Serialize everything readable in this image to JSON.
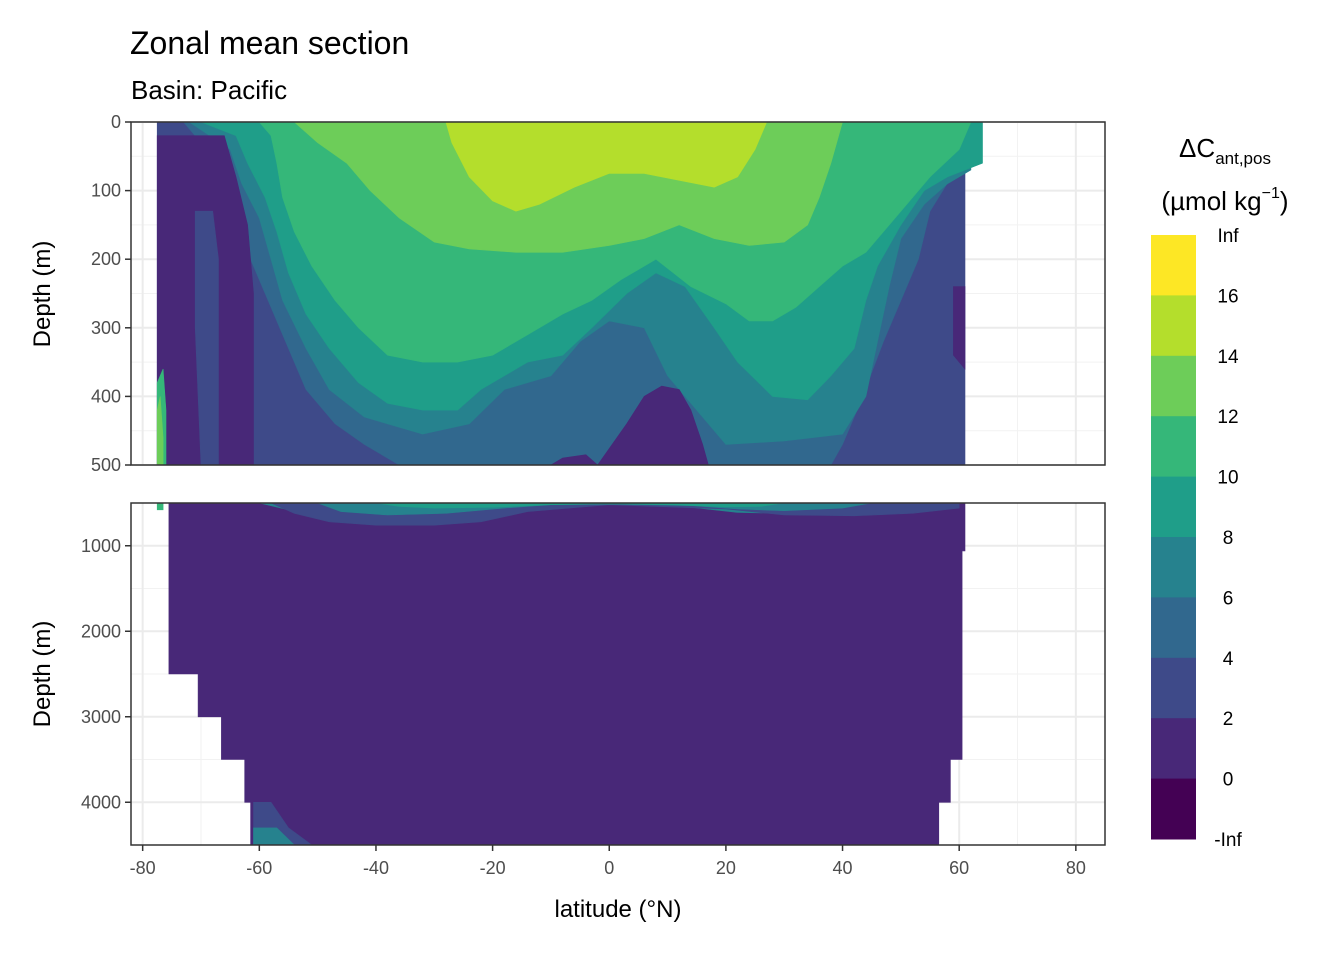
{
  "chart_data": {
    "type": "heatmap",
    "subtype": "filled contour section (two stacked panels)",
    "title": "Zonal mean section",
    "subtitle": "Basin: Pacific",
    "xlabel": "latitude (°N)",
    "ylabel": "Depth (m)",
    "xlim": [
      -82,
      85
    ],
    "x_ticks": [
      -80,
      -60,
      -40,
      -20,
      0,
      20,
      40,
      60,
      80
    ],
    "x_tick_labels": [
      "-80",
      "-60",
      "-40",
      "-20",
      "0",
      "20",
      "40",
      "60",
      "80"
    ],
    "grid": true,
    "panels": [
      {
        "id": "upper",
        "ylim": [
          0,
          500
        ],
        "y_reversed": true,
        "y_ticks": [
          0,
          100,
          200,
          300,
          400,
          500
        ],
        "y_tick_labels": [
          "0",
          "100",
          "200",
          "300",
          "400",
          "500"
        ]
      },
      {
        "id": "lower",
        "ylim": [
          500,
          4500
        ],
        "y_reversed": true,
        "y_ticks": [
          1000,
          2000,
          3000,
          4000
        ],
        "y_tick_labels": [
          "1000",
          "2000",
          "3000",
          "4000"
        ]
      }
    ],
    "legend": {
      "title": "ΔC",
      "title_subscript": "ant,pos",
      "unit_prefix": "(µmol kg",
      "unit_superscript": "−1",
      "unit_suffix": ")",
      "placement": "right",
      "breaks": [
        "Inf",
        "16",
        "14",
        "12",
        "10",
        "8",
        "6",
        "4",
        "2",
        "0",
        "-Inf"
      ],
      "colors": [
        "#FDE725",
        "#B4DE2C",
        "#6DCD59",
        "#35B779",
        "#1F9E89",
        "#26828E",
        "#31688E",
        "#3E4A89",
        "#482878",
        "#440154"
      ]
    },
    "upper_layers": [
      {
        "level": "2-4",
        "color": "#3E4A89",
        "x_top": [
          -77.5,
          61
        ],
        "poly": [
          [
            -77.5,
            0
          ],
          [
            61,
            0
          ],
          [
            61,
            500
          ],
          [
            -77.5,
            500
          ]
        ]
      },
      {
        "level": "4-6",
        "color": "#31688E",
        "poly": [
          [
            -73,
            0
          ],
          [
            59,
            0
          ],
          [
            59,
            75
          ],
          [
            55,
            130
          ],
          [
            53,
            200
          ],
          [
            50,
            260
          ],
          [
            47,
            320
          ],
          [
            43,
            410
          ],
          [
            40,
            470
          ],
          [
            38,
            500
          ],
          [
            -36,
            500
          ],
          [
            -42,
            470
          ],
          [
            -47,
            440
          ],
          [
            -52,
            390
          ],
          [
            -55,
            330
          ],
          [
            -58,
            270
          ],
          [
            -61,
            210
          ],
          [
            -64,
            150
          ],
          [
            -66,
            90
          ],
          [
            -69,
            40
          ]
        ]
      },
      {
        "level": "6-8",
        "color": "#26828E",
        "poly": [
          [
            -72,
            0
          ],
          [
            62,
            0
          ],
          [
            62,
            70
          ],
          [
            58,
            90
          ],
          [
            54,
            120
          ],
          [
            50,
            170
          ],
          [
            48,
            240
          ],
          [
            46,
            320
          ],
          [
            44,
            400
          ],
          [
            40,
            455
          ],
          [
            30,
            465
          ],
          [
            20,
            470
          ],
          [
            10,
            370
          ],
          [
            6,
            300
          ],
          [
            0,
            290
          ],
          [
            -5,
            320
          ],
          [
            -10,
            370
          ],
          [
            -18,
            390
          ],
          [
            -24,
            440
          ],
          [
            -32,
            455
          ],
          [
            -42,
            430
          ],
          [
            -48,
            390
          ],
          [
            -52,
            330
          ],
          [
            -56,
            260
          ],
          [
            -58,
            200
          ],
          [
            -60,
            140
          ],
          [
            -63,
            90
          ],
          [
            -65,
            40
          ]
        ]
      },
      {
        "level": "8-10",
        "color": "#1F9E89",
        "poly": [
          [
            -70,
            0
          ],
          [
            64,
            0
          ],
          [
            64,
            60
          ],
          [
            58,
            80
          ],
          [
            54,
            100
          ],
          [
            50,
            150
          ],
          [
            46,
            210
          ],
          [
            44,
            260
          ],
          [
            42,
            330
          ],
          [
            38,
            370
          ],
          [
            34,
            405
          ],
          [
            28,
            400
          ],
          [
            22,
            350
          ],
          [
            18,
            300
          ],
          [
            13,
            240
          ],
          [
            8,
            220
          ],
          [
            3,
            250
          ],
          [
            -3,
            300
          ],
          [
            -8,
            340
          ],
          [
            -14,
            350
          ],
          [
            -22,
            390
          ],
          [
            -26,
            420
          ],
          [
            -32,
            420
          ],
          [
            -38,
            410
          ],
          [
            -43,
            380
          ],
          [
            -48,
            330
          ],
          [
            -52,
            280
          ],
          [
            -55,
            220
          ],
          [
            -57,
            160
          ],
          [
            -59,
            110
          ],
          [
            -62,
            60
          ],
          [
            -64,
            20
          ]
        ]
      },
      {
        "level": "10-12",
        "color": "#35B779",
        "poly": [
          [
            -60,
            0
          ],
          [
            62,
            0
          ],
          [
            60,
            40
          ],
          [
            55,
            80
          ],
          [
            52,
            110
          ],
          [
            48,
            150
          ],
          [
            44,
            190
          ],
          [
            40,
            210
          ],
          [
            36,
            240
          ],
          [
            32,
            270
          ],
          [
            28,
            290
          ],
          [
            24,
            290
          ],
          [
            20,
            265
          ],
          [
            14,
            240
          ],
          [
            8,
            200
          ],
          [
            2,
            230
          ],
          [
            -3,
            260
          ],
          [
            -8,
            280
          ],
          [
            -14,
            310
          ],
          [
            -20,
            340
          ],
          [
            -26,
            350
          ],
          [
            -32,
            350
          ],
          [
            -38,
            340
          ],
          [
            -43,
            300
          ],
          [
            -47,
            260
          ],
          [
            -51,
            210
          ],
          [
            -54,
            160
          ],
          [
            -56,
            110
          ],
          [
            -57,
            60
          ],
          [
            -58,
            20
          ]
        ]
      },
      {
        "level": "12-14",
        "color": "#6DCD59",
        "poly": [
          [
            -54,
            0
          ],
          [
            40,
            0
          ],
          [
            38,
            60
          ],
          [
            36,
            110
          ],
          [
            34,
            150
          ],
          [
            30,
            175
          ],
          [
            24,
            180
          ],
          [
            18,
            170
          ],
          [
            12,
            150
          ],
          [
            6,
            170
          ],
          [
            0,
            180
          ],
          [
            -8,
            190
          ],
          [
            -16,
            190
          ],
          [
            -24,
            185
          ],
          [
            -30,
            175
          ],
          [
            -36,
            140
          ],
          [
            -41,
            100
          ],
          [
            -45,
            60
          ],
          [
            -50,
            30
          ]
        ]
      },
      {
        "level": "14-16",
        "color": "#B4DE2C",
        "poly": [
          [
            -28,
            0
          ],
          [
            27,
            0
          ],
          [
            25,
            40
          ],
          [
            22,
            80
          ],
          [
            18,
            95
          ],
          [
            12,
            85
          ],
          [
            6,
            75
          ],
          [
            0,
            75
          ],
          [
            -6,
            95
          ],
          [
            -12,
            120
          ],
          [
            -16,
            130
          ],
          [
            -20,
            115
          ],
          [
            -24,
            80
          ],
          [
            -27,
            30
          ]
        ]
      },
      {
        "level": "0-2",
        "color": "#482878",
        "poly": [
          [
            -77.5,
            20
          ],
          [
            -66,
            20
          ],
          [
            -64,
            80
          ],
          [
            -62,
            150
          ],
          [
            -61,
            250
          ],
          [
            -61,
            400
          ],
          [
            -61,
            500
          ],
          [
            -77.5,
            500
          ]
        ]
      },
      {
        "level": "0-2",
        "color": "#482878",
        "poly": [
          [
            -2,
            500
          ],
          [
            3,
            440
          ],
          [
            6,
            400
          ],
          [
            9,
            385
          ],
          [
            12,
            390
          ],
          [
            14,
            420
          ],
          [
            16,
            470
          ],
          [
            17,
            500
          ]
        ]
      },
      {
        "level": "0-2",
        "color": "#482878",
        "poly": [
          [
            -10,
            500
          ],
          [
            -8,
            490
          ],
          [
            -4,
            485
          ],
          [
            -2,
            500
          ]
        ]
      },
      {
        "level": "0-2",
        "color": "#482878",
        "poly": [
          [
            59,
            240
          ],
          [
            61,
            240
          ],
          [
            61,
            360
          ],
          [
            59,
            340
          ]
        ]
      },
      {
        "level": "2-4",
        "color": "#3E4A89",
        "poly": [
          [
            -71,
            130
          ],
          [
            -68,
            130
          ],
          [
            -67,
            200
          ],
          [
            -67,
            500
          ],
          [
            -70,
            500
          ],
          [
            -71,
            300
          ]
        ]
      },
      {
        "level": "10-12",
        "color": "#35B779",
        "poly": [
          [
            -77.5,
            380
          ],
          [
            -76.5,
            360
          ],
          [
            -76,
            420
          ],
          [
            -76,
            500
          ],
          [
            -77.5,
            500
          ]
        ]
      },
      {
        "level": "12-14",
        "color": "#6DCD59",
        "poly": [
          [
            -77.5,
            420
          ],
          [
            -77,
            400
          ],
          [
            -76.5,
            460
          ],
          [
            -76.5,
            500
          ],
          [
            -77.5,
            500
          ]
        ]
      }
    ],
    "lower_layers": [
      {
        "level": "0-2",
        "color": "#482878",
        "poly": [
          [
            -75.5,
            500
          ],
          [
            61,
            500
          ],
          [
            61,
            1060
          ],
          [
            60.5,
            1060
          ],
          [
            60.5,
            3500
          ],
          [
            58.5,
            3500
          ],
          [
            58.5,
            4000
          ],
          [
            56.5,
            4000
          ],
          [
            56.5,
            4500
          ],
          [
            -61.5,
            4500
          ],
          [
            -61.5,
            4000
          ],
          [
            -62.5,
            4000
          ],
          [
            -62.5,
            3500
          ],
          [
            -66.5,
            3500
          ],
          [
            -66.5,
            3000
          ],
          [
            -70.5,
            3000
          ],
          [
            -70.5,
            2500
          ],
          [
            -75.5,
            2500
          ]
        ]
      },
      {
        "level": "6-8",
        "color": "#26828E",
        "poly": [
          [
            -60,
            500
          ],
          [
            55,
            500
          ],
          [
            50,
            560
          ],
          [
            40,
            600
          ],
          [
            30,
            620
          ],
          [
            22,
            610
          ],
          [
            10,
            520
          ],
          [
            -8,
            520
          ],
          [
            -15,
            580
          ],
          [
            -28,
            650
          ],
          [
            -40,
            690
          ],
          [
            -48,
            650
          ],
          [
            -55,
            580
          ]
        ]
      },
      {
        "level": "2-4",
        "color": "#3E4A89",
        "poly": [
          [
            -58,
            500
          ],
          [
            60,
            500
          ],
          [
            60,
            560
          ],
          [
            52,
            620
          ],
          [
            42,
            650
          ],
          [
            30,
            640
          ],
          [
            20,
            570
          ],
          [
            0,
            520
          ],
          [
            -14,
            600
          ],
          [
            -22,
            720
          ],
          [
            -30,
            760
          ],
          [
            -40,
            760
          ],
          [
            -48,
            720
          ],
          [
            -54,
            620
          ]
        ]
      },
      {
        "level": "6-8",
        "color": "#26828E",
        "poly": [
          [
            -50,
            500
          ],
          [
            45,
            500
          ],
          [
            40,
            560
          ],
          [
            30,
            590
          ],
          [
            22,
            570
          ],
          [
            14,
            530
          ],
          [
            0,
            510
          ],
          [
            -10,
            520
          ],
          [
            -18,
            560
          ],
          [
            -28,
            620
          ],
          [
            -38,
            640
          ],
          [
            -46,
            600
          ]
        ]
      },
      {
        "level": "8-10",
        "color": "#1F9E89",
        "poly": [
          [
            -40,
            500
          ],
          [
            30,
            500
          ],
          [
            26,
            540
          ],
          [
            20,
            545
          ],
          [
            10,
            520
          ],
          [
            0,
            510
          ],
          [
            -10,
            520
          ],
          [
            -20,
            550
          ],
          [
            -30,
            560
          ],
          [
            -36,
            540
          ]
        ]
      },
      {
        "level": "2-4",
        "color": "#3E4A89",
        "poly": [
          [
            -61,
            4000
          ],
          [
            -58,
            4000
          ],
          [
            -55,
            4300
          ],
          [
            -51,
            4500
          ],
          [
            -61,
            4500
          ]
        ]
      },
      {
        "level": "6-8",
        "color": "#26828E",
        "poly": [
          [
            -61,
            4300
          ],
          [
            -57,
            4300
          ],
          [
            -54,
            4500
          ],
          [
            -61,
            4500
          ]
        ]
      },
      {
        "level": "10-12",
        "color": "#35B779",
        "poly": [
          [
            -77.5,
            500
          ],
          [
            -76.5,
            500
          ],
          [
            -76.5,
            580
          ],
          [
            -77.5,
            580
          ]
        ]
      }
    ]
  }
}
